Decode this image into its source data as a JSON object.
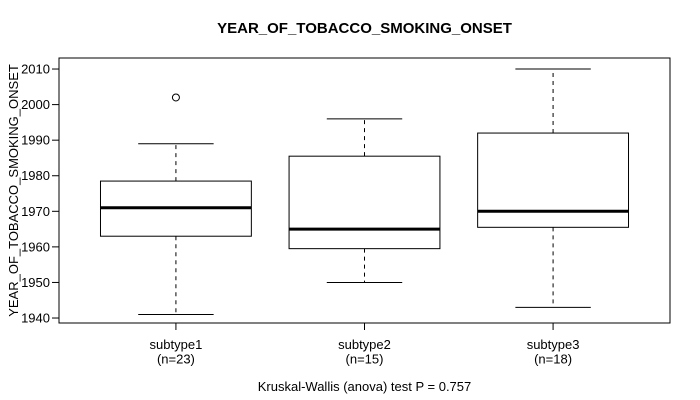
{
  "window": {
    "background": "#ffffff"
  },
  "chart_data": {
    "type": "boxplot",
    "title": "YEAR_OF_TOBACCO_SMOKING_ONSET",
    "ylabel": "YEAR_OF_TOBACCO_SMOKING_ONSET",
    "xlabel": "",
    "caption": "Kruskal-Wallis (anova) test P = 0.757",
    "grid": false,
    "legend": false,
    "y_axis": {
      "min": 1938.6,
      "max": 2013.1,
      "ticks": [
        1940,
        1950,
        1960,
        1970,
        1980,
        1990,
        2000,
        2010
      ]
    },
    "x_axis": {
      "min": 0.38,
      "max": 3.62
    },
    "groups": [
      {
        "label": "subtype1",
        "n_label": "(n=23)",
        "n": 23,
        "position": 1,
        "whisker_low": 1941,
        "q1": 1963,
        "median": 1971,
        "q3": 1978.5,
        "whisker_high": 1989,
        "outliers": [
          2002
        ]
      },
      {
        "label": "subtype2",
        "n_label": "(n=15)",
        "n": 15,
        "position": 2,
        "whisker_low": 1950,
        "q1": 1959.5,
        "median": 1965,
        "q3": 1985.5,
        "whisker_high": 1996,
        "outliers": []
      },
      {
        "label": "subtype3",
        "n_label": "(n=18)",
        "n": 18,
        "position": 3,
        "whisker_low": 1943,
        "q1": 1965.5,
        "median": 1970,
        "q3": 1992,
        "whisker_high": 2010,
        "outliers": []
      }
    ],
    "style": {
      "line_color": "#000000",
      "box_fill": "#ffffff",
      "box_width": 0.8,
      "cap_width": 0.4,
      "median_stroke_width": 3,
      "whisker_dash": "4,4",
      "outlier_radius": 3.5
    }
  }
}
